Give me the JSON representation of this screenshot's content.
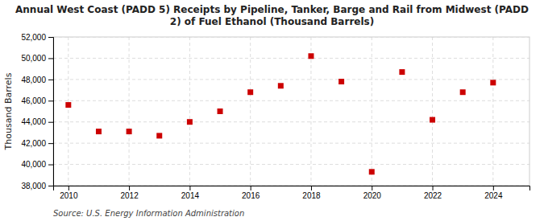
{
  "chart_data": {
    "type": "scatter",
    "title": "Annual West Coast (PADD 5) Receipts by Pipeline, Tanker, Barge and Rail from Midwest (PADD\n2) of Fuel Ethanol (Thousand Barrels)",
    "y_label": "Thousand Barrels",
    "source": "Source: U.S. Energy Information Administration",
    "x": [
      2010,
      2011,
      2012,
      2013,
      2014,
      2015,
      2016,
      2017,
      2018,
      2019,
      2020,
      2021,
      2022,
      2023,
      2024
    ],
    "values": [
      45600,
      43100,
      43100,
      42700,
      44000,
      45000,
      46800,
      47400,
      50200,
      47800,
      39300,
      48700,
      44200,
      46800,
      47700
    ],
    "color": "#cc0000",
    "marker": "square",
    "xlim": [
      2009.5,
      2025.2
    ],
    "xticks": [
      2010,
      2012,
      2014,
      2016,
      2018,
      2020,
      2022,
      2024
    ],
    "ylim": [
      38000,
      52000
    ],
    "yticks": [
      {
        "value": 38000,
        "label": "38,000"
      },
      {
        "value": 40000,
        "label": "40,000"
      },
      {
        "value": 42000,
        "label": "42,000"
      },
      {
        "value": 44000,
        "label": "44,000"
      },
      {
        "value": 46000,
        "label": "46,000"
      },
      {
        "value": 48000,
        "label": "48,000"
      },
      {
        "value": 50000,
        "label": "50,000"
      },
      {
        "value": 52000,
        "label": "52,000"
      }
    ],
    "grid": true
  }
}
